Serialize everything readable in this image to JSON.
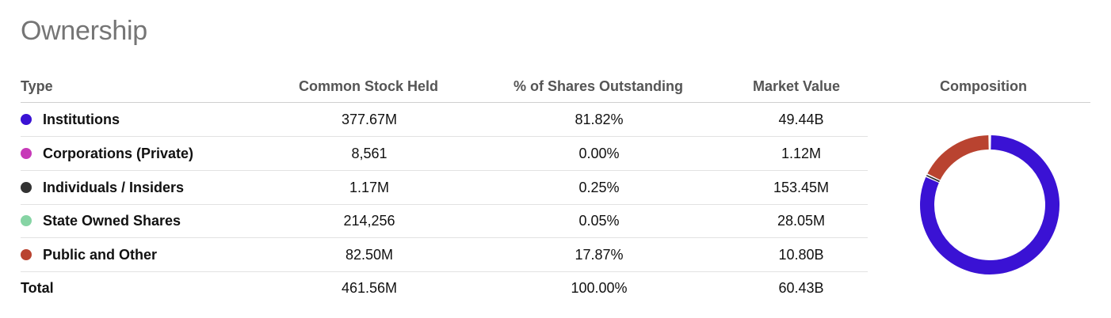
{
  "title": "Ownership",
  "headers": {
    "type": "Type",
    "stock": "Common Stock Held",
    "pct": "% of Shares Outstanding",
    "market": "Market Value",
    "composition": "Composition"
  },
  "rows": [
    {
      "type": "Institutions",
      "stock": "377.67M",
      "pct": "81.82%",
      "market": "49.44B",
      "color": "#3a12d4",
      "share": 81.82
    },
    {
      "type": "Corporations (Private)",
      "stock": "8,561",
      "pct": "0.00%",
      "market": "1.12M",
      "color": "#c73ab8",
      "share": 0.0
    },
    {
      "type": "Individuals / Insiders",
      "stock": "1.17M",
      "pct": "0.25%",
      "market": "153.45M",
      "color": "#333333",
      "share": 0.25
    },
    {
      "type": "State Owned Shares",
      "stock": "214,256",
      "pct": "0.05%",
      "market": "28.05M",
      "color": "#86d4a4",
      "share": 0.05
    },
    {
      "type": "Public and Other",
      "stock": "82.50M",
      "pct": "17.87%",
      "market": "10.80B",
      "color": "#b94330",
      "share": 17.87
    }
  ],
  "total": {
    "type": "Total",
    "stock": "461.56M",
    "pct": "100.00%",
    "market": "60.43B"
  }
}
